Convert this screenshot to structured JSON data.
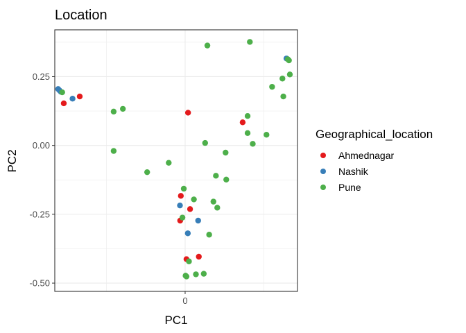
{
  "chart_data": {
    "type": "scatter",
    "title": "Location",
    "xlabel": "PC1",
    "ylabel": "PC2",
    "xlim": [
      -0.58,
      0.5
    ],
    "ylim": [
      -0.53,
      0.42
    ],
    "x_ticks": [
      {
        "value": 0,
        "label": "0"
      }
    ],
    "y_ticks": [
      {
        "value": 0.25,
        "label": "0.25"
      },
      {
        "value": 0.0,
        "label": "0.00"
      },
      {
        "value": -0.25,
        "label": "-0.25"
      },
      {
        "value": -0.5,
        "label": "-0.50"
      }
    ],
    "grid": true,
    "legend": {
      "title": "Geographical_location",
      "placement": "right",
      "entries": [
        {
          "name": "Ahmednagar",
          "color": "#e41a1c"
        },
        {
          "name": "Nashik",
          "color": "#377eb8"
        },
        {
          "name": "Pune",
          "color": "#4daf4a"
        }
      ]
    },
    "series": [
      {
        "name": "Ahmednagar",
        "color": "#e41a1c",
        "points": [
          {
            "x": -0.54,
            "y": 0.153
          },
          {
            "x": -0.469,
            "y": 0.178
          },
          {
            "x": 0.013,
            "y": 0.119
          },
          {
            "x": 0.256,
            "y": 0.084
          },
          {
            "x": -0.019,
            "y": -0.183
          },
          {
            "x": 0.022,
            "y": -0.231
          },
          {
            "x": -0.022,
            "y": -0.273
          },
          {
            "x": 0.006,
            "y": -0.413
          },
          {
            "x": 0.061,
            "y": -0.404
          }
        ]
      },
      {
        "name": "Nashik",
        "color": "#377eb8",
        "points": [
          {
            "x": -0.565,
            "y": 0.205
          },
          {
            "x": -0.559,
            "y": 0.2
          },
          {
            "x": -0.553,
            "y": 0.195
          },
          {
            "x": -0.501,
            "y": 0.17
          },
          {
            "x": 0.451,
            "y": 0.316
          },
          {
            "x": -0.023,
            "y": -0.218
          },
          {
            "x": 0.058,
            "y": -0.273
          },
          {
            "x": 0.012,
            "y": -0.319
          }
        ]
      },
      {
        "name": "Pune",
        "color": "#4daf4a",
        "points": [
          {
            "x": 0.099,
            "y": 0.363
          },
          {
            "x": 0.288,
            "y": 0.376
          },
          {
            "x": 0.457,
            "y": 0.313
          },
          {
            "x": 0.462,
            "y": 0.309
          },
          {
            "x": 0.466,
            "y": 0.258
          },
          {
            "x": 0.433,
            "y": 0.243
          },
          {
            "x": 0.387,
            "y": 0.213
          },
          {
            "x": 0.437,
            "y": 0.178
          },
          {
            "x": -0.547,
            "y": 0.193
          },
          {
            "x": -0.318,
            "y": 0.123
          },
          {
            "x": -0.277,
            "y": 0.133
          },
          {
            "x": 0.278,
            "y": 0.107
          },
          {
            "x": 0.278,
            "y": 0.045
          },
          {
            "x": 0.362,
            "y": 0.039
          },
          {
            "x": 0.301,
            "y": 0.006
          },
          {
            "x": 0.089,
            "y": 0.009
          },
          {
            "x": -0.318,
            "y": -0.02
          },
          {
            "x": 0.18,
            "y": -0.026
          },
          {
            "x": -0.073,
            "y": -0.063
          },
          {
            "x": -0.169,
            "y": -0.097
          },
          {
            "x": 0.137,
            "y": -0.11
          },
          {
            "x": 0.183,
            "y": -0.124
          },
          {
            "x": -0.006,
            "y": -0.157
          },
          {
            "x": 0.039,
            "y": -0.196
          },
          {
            "x": 0.126,
            "y": -0.204
          },
          {
            "x": 0.143,
            "y": -0.226
          },
          {
            "x": -0.012,
            "y": -0.262
          },
          {
            "x": 0.107,
            "y": -0.324
          },
          {
            "x": 0.017,
            "y": -0.421
          },
          {
            "x": 0.002,
            "y": -0.473
          },
          {
            "x": 0.006,
            "y": -0.476
          },
          {
            "x": 0.048,
            "y": -0.468
          },
          {
            "x": 0.083,
            "y": -0.466
          }
        ]
      }
    ]
  }
}
